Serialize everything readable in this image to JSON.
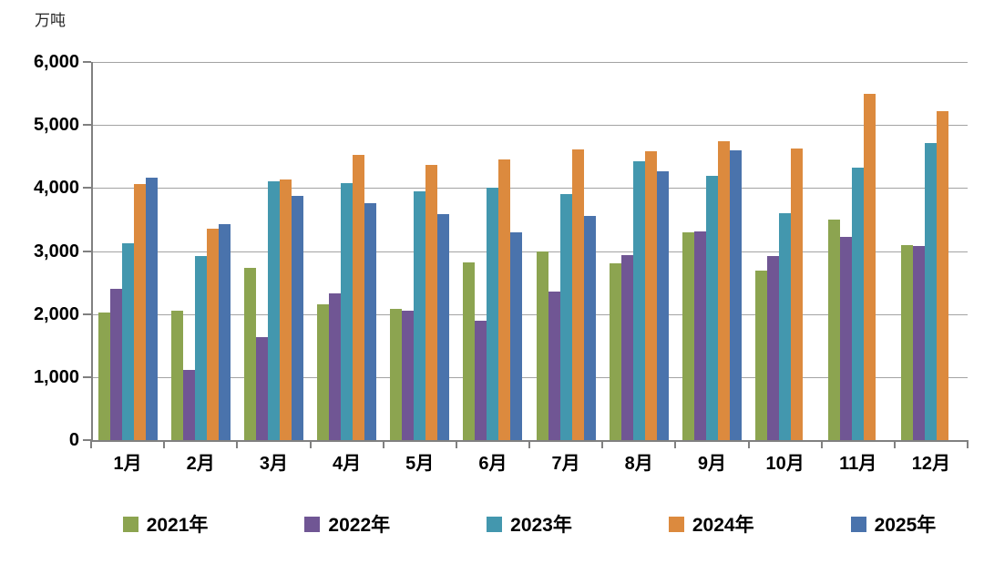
{
  "chart_data": {
    "type": "bar",
    "title": "",
    "unit_label": "万吨",
    "categories": [
      "1月",
      "2月",
      "3月",
      "4月",
      "5月",
      "6月",
      "7月",
      "8月",
      "9月",
      "10月",
      "11月",
      "12月"
    ],
    "series": [
      {
        "name": "2021年",
        "color": "#8CA450",
        "values": [
          2020,
          2060,
          2730,
          2150,
          2080,
          2820,
          3000,
          2800,
          3290,
          2690,
          3500,
          3090
        ]
      },
      {
        "name": "2022年",
        "color": "#705694",
        "values": [
          2400,
          1120,
          1630,
          2330,
          2050,
          1890,
          2350,
          2940,
          3310,
          2920,
          3220,
          3080
        ]
      },
      {
        "name": "2023年",
        "color": "#4397AE",
        "values": [
          3130,
          2920,
          4100,
          4070,
          3950,
          4000,
          3910,
          4430,
          4200,
          3600,
          4330,
          4710
        ]
      },
      {
        "name": "2024年",
        "color": "#DC8A3E",
        "values": [
          4060,
          3360,
          4130,
          4520,
          4370,
          4450,
          4610,
          4580,
          4740,
          4620,
          5500,
          5220
        ]
      },
      {
        "name": "2025年",
        "color": "#4A73AC",
        "values": [
          4160,
          3430,
          3870,
          3760,
          3590,
          3300,
          3560,
          4270,
          4600,
          null,
          null,
          null
        ]
      }
    ],
    "ylim": [
      0,
      6000
    ],
    "ytick_interval": 1000,
    "ytick_labels": [
      "0",
      "1,000",
      "2,000",
      "3,000",
      "4,000",
      "5,000",
      "6,000"
    ],
    "grid": true,
    "legend_position": "bottom",
    "axis_color": "#808080",
    "gridline_color": "#A3A3A3"
  }
}
